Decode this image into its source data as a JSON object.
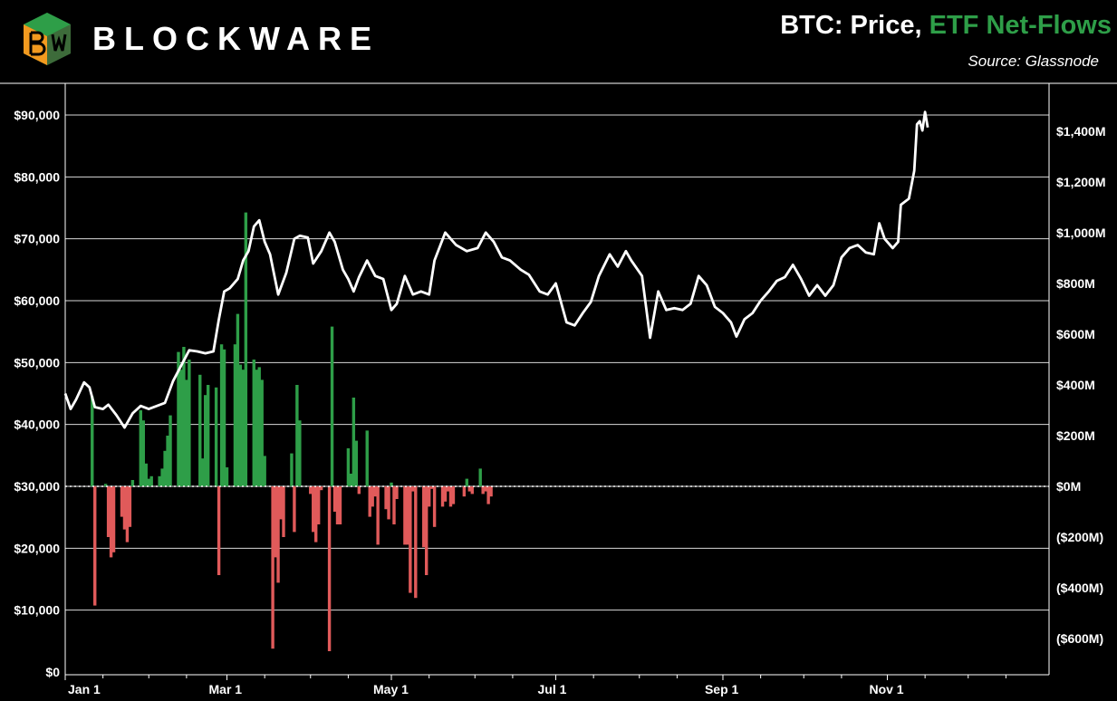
{
  "brand": {
    "name": "BLOCKWARE"
  },
  "header": {
    "title_part1": "BTC: Price, ",
    "title_part2": "ETF Net-Flows",
    "source": "Source: Glassnode"
  },
  "colors": {
    "price_line": "#ffffff",
    "inflow": "#2e9e48",
    "outflow": "#e05a5a",
    "grid": "#ffffff",
    "background": "#000000",
    "title_accent": "#2e9e48"
  },
  "chart_data": {
    "type": "bar+line",
    "title": "BTC: Price, ETF Net-Flows",
    "x_type": "date",
    "x_range": [
      "2024-01-01",
      "2024-12-31"
    ],
    "x_ticks": [
      {
        "label": "Jan 1",
        "date": "2024-01-01"
      },
      {
        "label": "Mar 1",
        "date": "2024-03-01"
      },
      {
        "label": "May 1",
        "date": "2024-05-01"
      },
      {
        "label": "Jul 1",
        "date": "2024-07-01"
      },
      {
        "label": "Sep 1",
        "date": "2024-09-01"
      },
      {
        "label": "Nov 1",
        "date": "2024-11-01"
      }
    ],
    "x_minor_ticks": [
      "2024-01-15",
      "2024-02-01",
      "2024-02-15",
      "2024-03-15",
      "2024-04-01",
      "2024-04-15",
      "2024-05-15",
      "2024-06-01",
      "2024-06-15",
      "2024-07-15",
      "2024-08-01",
      "2024-08-15",
      "2024-09-15",
      "2024-10-01",
      "2024-10-15",
      "2024-11-15",
      "2024-12-01",
      "2024-12-15"
    ],
    "y_left": {
      "range": [
        0,
        90000
      ],
      "ticks": [
        {
          "label": "$0",
          "value": 0
        },
        {
          "label": "$10,000",
          "value": 10000
        },
        {
          "label": "$20,000",
          "value": 20000
        },
        {
          "label": "$30,000",
          "value": 30000
        },
        {
          "label": "$40,000",
          "value": 40000
        },
        {
          "label": "$50,000",
          "value": 50000
        },
        {
          "label": "$60,000",
          "value": 60000
        },
        {
          "label": "$70,000",
          "value": 70000
        },
        {
          "label": "$80,000",
          "value": 80000
        },
        {
          "label": "$90,000",
          "value": 90000
        }
      ]
    },
    "y_right": {
      "range": [
        -720,
        1460
      ],
      "ticks": [
        {
          "label": "($600M)",
          "value": -600
        },
        {
          "label": "($400M)",
          "value": -400
        },
        {
          "label": "($200M)",
          "value": -200
        },
        {
          "label": "$0M",
          "value": 0
        },
        {
          "label": "$200M",
          "value": 200
        },
        {
          "label": "$400M",
          "value": 400
        },
        {
          "label": "$600M",
          "value": 600
        },
        {
          "label": "$800M",
          "value": 800
        },
        {
          "label": "$1,000M",
          "value": 1000
        },
        {
          "label": "$1,200M",
          "value": 1200
        },
        {
          "label": "$1,400M",
          "value": 1400
        }
      ]
    },
    "grid": true,
    "zero_line_style": "dotted",
    "series": [
      {
        "kind": "line",
        "axis": "left",
        "points": [
          [
            "2024-01-01",
            45000
          ],
          [
            "2024-01-03",
            42500
          ],
          [
            "2024-01-05",
            44000
          ],
          [
            "2024-01-08",
            46800
          ],
          [
            "2024-01-10",
            46000
          ],
          [
            "2024-01-12",
            42800
          ],
          [
            "2024-01-15",
            42500
          ],
          [
            "2024-01-17",
            43200
          ],
          [
            "2024-01-20",
            41500
          ],
          [
            "2024-01-23",
            39500
          ],
          [
            "2024-01-26",
            41800
          ],
          [
            "2024-01-29",
            43000
          ],
          [
            "2024-02-01",
            42500
          ],
          [
            "2024-02-04",
            43000
          ],
          [
            "2024-02-07",
            43500
          ],
          [
            "2024-02-10",
            47000
          ],
          [
            "2024-02-13",
            49500
          ],
          [
            "2024-02-16",
            52000
          ],
          [
            "2024-02-19",
            51800
          ],
          [
            "2024-02-22",
            51500
          ],
          [
            "2024-02-25",
            51800
          ],
          [
            "2024-02-27",
            57000
          ],
          [
            "2024-02-29",
            61500
          ],
          [
            "2024-03-02",
            62000
          ],
          [
            "2024-03-05",
            63500
          ],
          [
            "2024-03-07",
            66500
          ],
          [
            "2024-03-09",
            68000
          ],
          [
            "2024-03-11",
            72000
          ],
          [
            "2024-03-13",
            73000
          ],
          [
            "2024-03-15",
            69500
          ],
          [
            "2024-03-17",
            67500
          ],
          [
            "2024-03-20",
            61000
          ],
          [
            "2024-03-23",
            64500
          ],
          [
            "2024-03-26",
            70000
          ],
          [
            "2024-03-28",
            70500
          ],
          [
            "2024-03-31",
            70200
          ],
          [
            "2024-04-02",
            66000
          ],
          [
            "2024-04-05",
            68000
          ],
          [
            "2024-04-08",
            71000
          ],
          [
            "2024-04-10",
            69500
          ],
          [
            "2024-04-13",
            65000
          ],
          [
            "2024-04-15",
            63500
          ],
          [
            "2024-04-17",
            61500
          ],
          [
            "2024-04-19",
            63800
          ],
          [
            "2024-04-22",
            66500
          ],
          [
            "2024-04-25",
            64000
          ],
          [
            "2024-04-28",
            63500
          ],
          [
            "2024-05-01",
            58500
          ],
          [
            "2024-05-03",
            59500
          ],
          [
            "2024-05-06",
            64000
          ],
          [
            "2024-05-09",
            61000
          ],
          [
            "2024-05-12",
            61500
          ],
          [
            "2024-05-15",
            61000
          ],
          [
            "2024-05-17",
            66500
          ],
          [
            "2024-05-21",
            71000
          ],
          [
            "2024-05-25",
            69000
          ],
          [
            "2024-05-29",
            68000
          ],
          [
            "2024-06-02",
            68500
          ],
          [
            "2024-06-05",
            71000
          ],
          [
            "2024-06-08",
            69500
          ],
          [
            "2024-06-11",
            67000
          ],
          [
            "2024-06-14",
            66500
          ],
          [
            "2024-06-18",
            65000
          ],
          [
            "2024-06-21",
            64200
          ],
          [
            "2024-06-25",
            61500
          ],
          [
            "2024-06-28",
            61000
          ],
          [
            "2024-07-01",
            62800
          ],
          [
            "2024-07-05",
            56500
          ],
          [
            "2024-07-08",
            56000
          ],
          [
            "2024-07-11",
            58000
          ],
          [
            "2024-07-14",
            59800
          ],
          [
            "2024-07-17",
            64000
          ],
          [
            "2024-07-21",
            67500
          ],
          [
            "2024-07-24",
            65500
          ],
          [
            "2024-07-27",
            68000
          ],
          [
            "2024-07-29",
            66500
          ],
          [
            "2024-08-02",
            64000
          ],
          [
            "2024-08-05",
            54000
          ],
          [
            "2024-08-08",
            61500
          ],
          [
            "2024-08-11",
            58500
          ],
          [
            "2024-08-14",
            58800
          ],
          [
            "2024-08-17",
            58500
          ],
          [
            "2024-08-20",
            59500
          ],
          [
            "2024-08-23",
            64000
          ],
          [
            "2024-08-26",
            62500
          ],
          [
            "2024-08-29",
            59000
          ],
          [
            "2024-09-01",
            58000
          ],
          [
            "2024-09-04",
            56500
          ],
          [
            "2024-09-06",
            54200
          ],
          [
            "2024-09-09",
            57000
          ],
          [
            "2024-09-12",
            58000
          ],
          [
            "2024-09-15",
            60000
          ],
          [
            "2024-09-18",
            61500
          ],
          [
            "2024-09-21",
            63200
          ],
          [
            "2024-09-24",
            63800
          ],
          [
            "2024-09-27",
            65800
          ],
          [
            "2024-09-30",
            63500
          ],
          [
            "2024-10-03",
            60800
          ],
          [
            "2024-10-06",
            62500
          ],
          [
            "2024-10-09",
            60800
          ],
          [
            "2024-10-12",
            62500
          ],
          [
            "2024-10-15",
            67000
          ],
          [
            "2024-10-18",
            68500
          ],
          [
            "2024-10-21",
            69000
          ],
          [
            "2024-10-24",
            67800
          ],
          [
            "2024-10-27",
            67500
          ],
          [
            "2024-10-29",
            72500
          ],
          [
            "2024-10-31",
            70000
          ],
          [
            "2024-11-03",
            68500
          ],
          [
            "2024-11-05",
            69500
          ],
          [
            "2024-11-06",
            75500
          ],
          [
            "2024-11-09",
            76500
          ],
          [
            "2024-11-11",
            81000
          ],
          [
            "2024-11-12",
            88500
          ],
          [
            "2024-11-13",
            89000
          ],
          [
            "2024-11-14",
            87500
          ],
          [
            "2024-11-15",
            90500
          ],
          [
            "2024-11-16",
            88000
          ]
        ]
      },
      {
        "kind": "bar",
        "axis": "right",
        "name": "ETF Net-Flows",
        "points": [
          [
            "2024-01-11",
            355
          ],
          [
            "2024-01-12",
            -470
          ],
          [
            "2024-01-16",
            10
          ],
          [
            "2024-01-17",
            -200
          ],
          [
            "2024-01-18",
            -280
          ],
          [
            "2024-01-19",
            -260
          ],
          [
            "2024-01-22",
            -120
          ],
          [
            "2024-01-23",
            -170
          ],
          [
            "2024-01-24",
            -220
          ],
          [
            "2024-01-25",
            -160
          ],
          [
            "2024-01-26",
            25
          ],
          [
            "2024-01-29",
            300
          ],
          [
            "2024-01-30",
            260
          ],
          [
            "2024-01-31",
            90
          ],
          [
            "2024-02-01",
            30
          ],
          [
            "2024-02-02",
            40
          ],
          [
            "2024-02-05",
            40
          ],
          [
            "2024-02-06",
            70
          ],
          [
            "2024-02-07",
            140
          ],
          [
            "2024-02-08",
            200
          ],
          [
            "2024-02-09",
            280
          ],
          [
            "2024-02-12",
            530
          ],
          [
            "2024-02-13",
            460
          ],
          [
            "2024-02-14",
            550
          ],
          [
            "2024-02-15",
            420
          ],
          [
            "2024-02-16",
            500
          ],
          [
            "2024-02-20",
            440
          ],
          [
            "2024-02-21",
            110
          ],
          [
            "2024-02-22",
            360
          ],
          [
            "2024-02-23",
            400
          ],
          [
            "2024-02-26",
            390
          ],
          [
            "2024-02-27",
            -350
          ],
          [
            "2024-02-28",
            560
          ],
          [
            "2024-02-29",
            540
          ],
          [
            "2024-03-01",
            75
          ],
          [
            "2024-03-04",
            560
          ],
          [
            "2024-03-05",
            680
          ],
          [
            "2024-03-06",
            480
          ],
          [
            "2024-03-07",
            460
          ],
          [
            "2024-03-08",
            1080
          ],
          [
            "2024-03-11",
            500
          ],
          [
            "2024-03-12",
            460
          ],
          [
            "2024-03-13",
            470
          ],
          [
            "2024-03-14",
            420
          ],
          [
            "2024-03-15",
            120
          ],
          [
            "2024-03-18",
            -640
          ],
          [
            "2024-03-19",
            -280
          ],
          [
            "2024-03-20",
            -380
          ],
          [
            "2024-03-21",
            -130
          ],
          [
            "2024-03-22",
            -200
          ],
          [
            "2024-03-25",
            130
          ],
          [
            "2024-03-26",
            -180
          ],
          [
            "2024-03-27",
            400
          ],
          [
            "2024-03-28",
            260
          ],
          [
            "2024-04-01",
            -30
          ],
          [
            "2024-04-02",
            -180
          ],
          [
            "2024-04-03",
            -220
          ],
          [
            "2024-04-04",
            -150
          ],
          [
            "2024-04-05",
            -15
          ],
          [
            "2024-04-08",
            -650
          ],
          [
            "2024-04-09",
            630
          ],
          [
            "2024-04-10",
            -100
          ],
          [
            "2024-04-11",
            -150
          ],
          [
            "2024-04-12",
            -150
          ],
          [
            "2024-04-15",
            150
          ],
          [
            "2024-04-16",
            50
          ],
          [
            "2024-04-17",
            350
          ],
          [
            "2024-04-18",
            180
          ],
          [
            "2024-04-19",
            -30
          ],
          [
            "2024-04-22",
            220
          ],
          [
            "2024-04-23",
            -120
          ],
          [
            "2024-04-24",
            -80
          ],
          [
            "2024-04-25",
            -40
          ],
          [
            "2024-04-26",
            -230
          ],
          [
            "2024-04-29",
            -90
          ],
          [
            "2024-04-30",
            -130
          ],
          [
            "2024-05-01",
            15
          ],
          [
            "2024-05-02",
            -150
          ],
          [
            "2024-05-03",
            -50
          ],
          [
            "2024-05-06",
            -230
          ],
          [
            "2024-05-07",
            -230
          ],
          [
            "2024-05-08",
            -420
          ],
          [
            "2024-05-09",
            -20
          ],
          [
            "2024-05-10",
            -440
          ],
          [
            "2024-05-13",
            -240
          ],
          [
            "2024-05-14",
            -350
          ],
          [
            "2024-05-15",
            -80
          ],
          [
            "2024-05-16",
            -10
          ],
          [
            "2024-05-17",
            -160
          ],
          [
            "2024-05-20",
            -80
          ],
          [
            "2024-05-21",
            -60
          ],
          [
            "2024-05-22",
            -20
          ],
          [
            "2024-05-23",
            -80
          ],
          [
            "2024-05-24",
            -70
          ],
          [
            "2024-05-28",
            -40
          ],
          [
            "2024-05-29",
            30
          ],
          [
            "2024-05-30",
            -20
          ],
          [
            "2024-05-31",
            -30
          ],
          [
            "2024-06-03",
            70
          ],
          [
            "2024-06-04",
            -30
          ],
          [
            "2024-06-05",
            -20
          ],
          [
            "2024-06-06",
            -70
          ],
          [
            "2024-06-07",
            -40
          ]
        ]
      }
    ]
  }
}
